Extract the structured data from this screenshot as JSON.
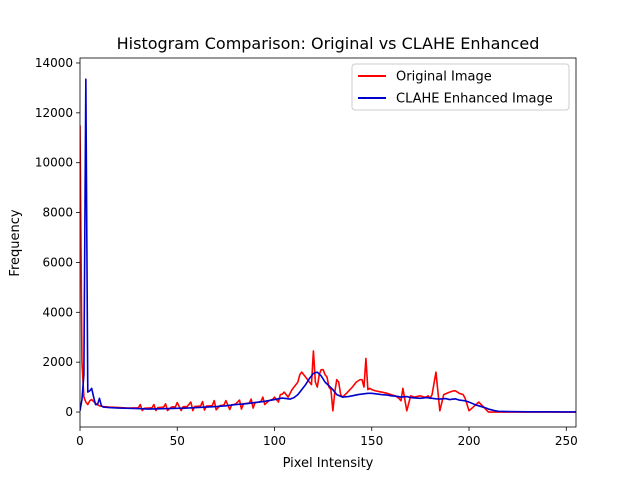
{
  "chart_data": {
    "type": "line",
    "title": "Histogram Comparison: Original vs CLAHE Enhanced",
    "xlabel": "Pixel Intensity",
    "ylabel": "Frequency",
    "xlim": [
      0,
      255
    ],
    "ylim": [
      -600,
      14200
    ],
    "xticks": [
      0,
      50,
      100,
      150,
      200,
      250
    ],
    "yticks": [
      0,
      2000,
      4000,
      6000,
      8000,
      10000,
      12000,
      14000
    ],
    "grid": false,
    "legend_position": "upper right",
    "series": [
      {
        "name": "Original Image",
        "color": "#ff0000",
        "x": [
          0,
          1,
          2,
          3,
          4,
          5,
          6,
          7,
          8,
          9,
          10,
          12,
          15,
          20,
          25,
          30,
          31,
          32,
          33,
          35,
          37,
          38,
          39,
          40,
          42,
          43,
          44,
          45,
          47,
          48,
          49,
          50,
          52,
          53,
          54,
          55,
          57,
          58,
          59,
          60,
          62,
          63,
          64,
          65,
          67,
          68,
          69,
          70,
          72,
          73,
          74,
          75,
          77,
          78,
          79,
          80,
          82,
          83,
          84,
          85,
          87,
          88,
          89,
          90,
          92,
          93,
          94,
          95,
          97,
          98,
          99,
          100,
          102,
          103,
          104,
          105,
          107,
          108,
          109,
          110,
          112,
          113,
          114,
          115,
          117,
          118,
          119,
          120,
          121,
          122,
          123,
          124,
          125,
          126,
          127,
          128,
          129,
          130,
          131,
          132,
          133,
          134,
          135,
          137,
          140,
          142,
          143,
          144,
          145,
          146,
          147,
          148,
          149,
          150,
          152,
          155,
          158,
          160,
          162,
          163,
          164,
          165,
          166,
          168,
          170,
          172,
          175,
          177,
          178,
          179,
          180,
          181,
          183,
          185,
          187,
          190,
          192,
          193,
          194,
          195,
          197,
          198,
          200,
          205,
          210,
          215,
          220,
          230,
          240,
          250,
          255
        ],
        "y": [
          11500,
          2000,
          600,
          400,
          300,
          450,
          500,
          420,
          350,
          300,
          250,
          220,
          200,
          180,
          160,
          170,
          300,
          60,
          150,
          160,
          170,
          300,
          60,
          180,
          190,
          200,
          330,
          60,
          200,
          210,
          200,
          380,
          60,
          210,
          220,
          210,
          400,
          60,
          220,
          230,
          240,
          420,
          80,
          240,
          250,
          260,
          460,
          90,
          260,
          270,
          280,
          460,
          100,
          290,
          300,
          320,
          480,
          120,
          330,
          340,
          360,
          520,
          160,
          380,
          400,
          420,
          600,
          300,
          450,
          480,
          500,
          600,
          400,
          700,
          720,
          800,
          600,
          750,
          900,
          1000,
          1200,
          1500,
          1600,
          1500,
          1300,
          1200,
          1100,
          2450,
          1200,
          1000,
          1500,
          1700,
          1700,
          1500,
          1400,
          1000,
          900,
          50,
          800,
          1300,
          1200,
          700,
          600,
          750,
          1000,
          1200,
          1250,
          1300,
          1300,
          1000,
          2150,
          900,
          950,
          900,
          850,
          800,
          750,
          700,
          650,
          600,
          550,
          450,
          950,
          50,
          650,
          600,
          650,
          600,
          600,
          650,
          550,
          700,
          1600,
          50,
          700,
          800,
          850,
          850,
          800,
          750,
          700,
          550,
          50,
          400,
          0,
          0,
          0,
          0,
          0,
          0,
          0
        ]
      },
      {
        "name": "CLAHE Enhanced Image",
        "color": "#0000cc",
        "x": [
          0,
          1,
          2,
          3,
          4,
          5,
          6,
          7,
          8,
          9,
          10,
          11,
          12,
          15,
          20,
          25,
          30,
          35,
          40,
          45,
          50,
          55,
          60,
          65,
          70,
          75,
          80,
          85,
          90,
          95,
          100,
          102,
          104,
          106,
          108,
          110,
          112,
          114,
          116,
          118,
          120,
          122,
          124,
          126,
          128,
          130,
          132,
          135,
          138,
          140,
          143,
          145,
          148,
          150,
          153,
          155,
          158,
          160,
          163,
          165,
          168,
          170,
          173,
          175,
          178,
          180,
          183,
          185,
          188,
          190,
          193,
          195,
          198,
          200,
          203,
          205,
          208,
          210,
          213,
          215,
          220,
          225,
          230,
          240,
          250,
          255
        ],
        "y": [
          50,
          500,
          1500,
          13350,
          800,
          850,
          950,
          600,
          300,
          300,
          550,
          250,
          200,
          180,
          160,
          150,
          140,
          120,
          130,
          140,
          150,
          160,
          180,
          200,
          220,
          250,
          300,
          330,
          380,
          430,
          500,
          530,
          560,
          540,
          520,
          580,
          700,
          900,
          1100,
          1350,
          1550,
          1600,
          1450,
          1200,
          1050,
          900,
          700,
          600,
          620,
          650,
          700,
          720,
          750,
          750,
          720,
          700,
          680,
          650,
          630,
          600,
          620,
          580,
          560,
          550,
          580,
          560,
          530,
          520,
          540,
          500,
          530,
          480,
          450,
          400,
          300,
          250,
          180,
          120,
          60,
          30,
          20,
          15,
          10,
          8,
          5,
          5
        ]
      }
    ]
  }
}
